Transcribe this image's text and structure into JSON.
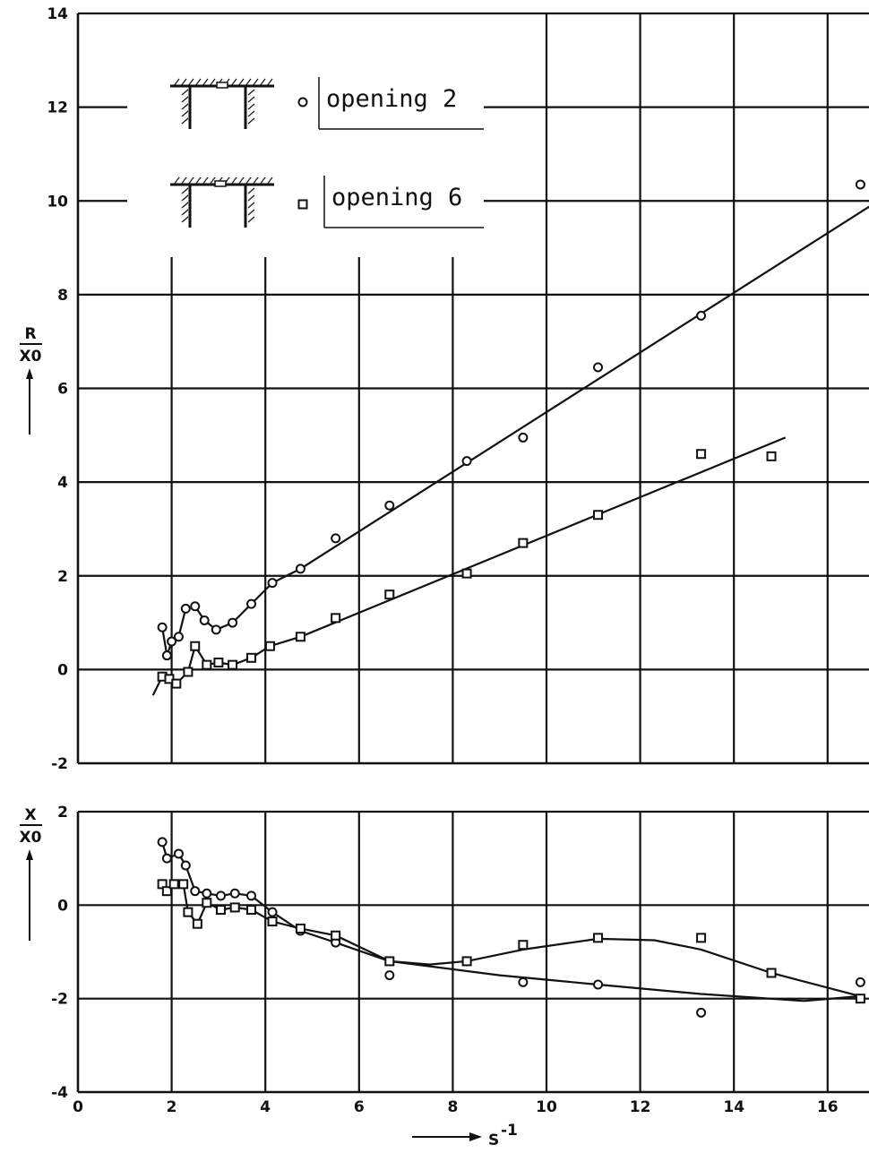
{
  "chart_data": [
    {
      "type": "scatter",
      "panel": "top",
      "ylabel": {
        "num": "R",
        "den": "X0"
      },
      "xlim": [
        0,
        17
      ],
      "ylim": [
        -2,
        14
      ],
      "xticks": [
        0,
        2,
        4,
        6,
        8,
        10,
        12,
        14,
        16
      ],
      "yticks": [
        -2,
        0,
        2,
        4,
        6,
        8,
        10,
        12,
        14
      ],
      "grid": true,
      "legend": {
        "placement": "top-left",
        "entries": [
          {
            "marker": "circle",
            "label": "opening 2"
          },
          {
            "marker": "square",
            "label": "opening 6"
          }
        ]
      },
      "series": [
        {
          "marker": "circle",
          "points": [
            [
              1.8,
              0.9
            ],
            [
              1.9,
              0.3
            ],
            [
              2.0,
              0.6
            ],
            [
              2.15,
              0.7
            ],
            [
              2.3,
              1.3
            ],
            [
              2.5,
              1.35
            ],
            [
              2.7,
              1.05
            ],
            [
              2.95,
              0.85
            ],
            [
              3.3,
              1.0
            ],
            [
              3.7,
              1.4
            ],
            [
              4.15,
              1.85
            ],
            [
              4.75,
              2.15
            ],
            [
              5.5,
              2.8
            ],
            [
              6.65,
              3.5
            ],
            [
              8.3,
              4.45
            ],
            [
              9.5,
              4.95
            ],
            [
              11.1,
              6.45
            ],
            [
              13.3,
              7.55
            ],
            [
              16.7,
              10.35
            ]
          ],
          "curve": [
            [
              1.8,
              0.9
            ],
            [
              1.9,
              0.3
            ],
            [
              2.0,
              0.6
            ],
            [
              2.15,
              0.7
            ],
            [
              2.3,
              1.3
            ],
            [
              2.5,
              1.35
            ],
            [
              2.7,
              1.05
            ],
            [
              2.95,
              0.85
            ],
            [
              3.3,
              1.0
            ],
            [
              3.7,
              1.4
            ],
            [
              4.15,
              1.85
            ],
            [
              4.75,
              2.15
            ],
            [
              17.0,
              9.95
            ]
          ]
        },
        {
          "marker": "square",
          "points": [
            [
              1.8,
              -0.15
            ],
            [
              1.95,
              -0.2
            ],
            [
              2.1,
              -0.3
            ],
            [
              2.35,
              -0.05
            ],
            [
              2.5,
              0.5
            ],
            [
              2.75,
              0.1
            ],
            [
              3.0,
              0.15
            ],
            [
              3.3,
              0.1
            ],
            [
              3.7,
              0.25
            ],
            [
              4.1,
              0.5
            ],
            [
              4.75,
              0.7
            ],
            [
              5.5,
              1.1
            ],
            [
              6.65,
              1.6
            ],
            [
              8.3,
              2.05
            ],
            [
              9.5,
              2.7
            ],
            [
              11.1,
              3.3
            ],
            [
              13.3,
              4.6
            ],
            [
              14.8,
              4.55
            ]
          ],
          "curve": [
            [
              1.6,
              -0.55
            ],
            [
              1.8,
              -0.15
            ],
            [
              1.95,
              -0.2
            ],
            [
              2.1,
              -0.3
            ],
            [
              2.35,
              -0.05
            ],
            [
              2.5,
              0.5
            ],
            [
              2.75,
              0.1
            ],
            [
              3.0,
              0.15
            ],
            [
              3.3,
              0.1
            ],
            [
              3.7,
              0.25
            ],
            [
              4.1,
              0.5
            ],
            [
              4.75,
              0.7
            ],
            [
              15.1,
              4.95
            ]
          ]
        }
      ]
    },
    {
      "type": "scatter",
      "panel": "bottom",
      "ylabel": {
        "num": "X",
        "den": "X0"
      },
      "xlabel": "S",
      "xlabel_exp": "-1",
      "xlim": [
        0,
        17
      ],
      "ylim": [
        -4,
        2
      ],
      "xticks": [
        0,
        2,
        4,
        6,
        8,
        10,
        12,
        14,
        16
      ],
      "yticks": [
        -4,
        -2,
        0,
        2
      ],
      "grid": true,
      "series": [
        {
          "marker": "circle",
          "points": [
            [
              1.8,
              1.35
            ],
            [
              1.9,
              1.0
            ],
            [
              2.15,
              1.1
            ],
            [
              2.3,
              0.85
            ],
            [
              2.5,
              0.3
            ],
            [
              2.75,
              0.25
            ],
            [
              3.05,
              0.2
            ],
            [
              3.35,
              0.25
            ],
            [
              3.7,
              0.2
            ],
            [
              4.15,
              -0.15
            ],
            [
              4.75,
              -0.55
            ],
            [
              5.5,
              -0.8
            ],
            [
              6.65,
              -1.5
            ],
            [
              8.3,
              -1.2
            ],
            [
              9.5,
              -1.65
            ],
            [
              11.1,
              -1.7
            ],
            [
              13.3,
              -2.3
            ],
            [
              16.7,
              -1.65
            ]
          ],
          "curve": [
            [
              1.8,
              1.35
            ],
            [
              1.9,
              1.0
            ],
            [
              2.15,
              1.1
            ],
            [
              2.3,
              0.85
            ],
            [
              2.5,
              0.3
            ],
            [
              2.75,
              0.25
            ],
            [
              3.05,
              0.2
            ],
            [
              3.35,
              0.25
            ],
            [
              3.7,
              0.2
            ],
            [
              4.15,
              -0.15
            ],
            [
              4.75,
              -0.55
            ],
            [
              5.5,
              -0.8
            ],
            [
              6.65,
              -1.2
            ],
            [
              9.0,
              -1.5
            ],
            [
              11.1,
              -1.7
            ],
            [
              13.3,
              -1.9
            ],
            [
              15.5,
              -2.05
            ],
            [
              16.65,
              -1.95
            ]
          ]
        },
        {
          "marker": "square",
          "points": [
            [
              1.8,
              0.45
            ],
            [
              1.9,
              0.3
            ],
            [
              2.05,
              0.45
            ],
            [
              2.25,
              0.45
            ],
            [
              2.35,
              -0.15
            ],
            [
              2.55,
              -0.4
            ],
            [
              2.75,
              0.05
            ],
            [
              3.05,
              -0.1
            ],
            [
              3.35,
              -0.05
            ],
            [
              3.7,
              -0.1
            ],
            [
              4.15,
              -0.35
            ],
            [
              4.75,
              -0.5
            ],
            [
              5.5,
              -0.65
            ],
            [
              6.65,
              -1.2
            ],
            [
              8.3,
              -1.2
            ],
            [
              9.5,
              -0.85
            ],
            [
              11.1,
              -0.7
            ],
            [
              13.3,
              -0.7
            ],
            [
              14.8,
              -1.45
            ],
            [
              16.7,
              -2.0
            ]
          ],
          "curve": [
            [
              1.8,
              0.45
            ],
            [
              1.9,
              0.3
            ],
            [
              2.05,
              0.45
            ],
            [
              2.25,
              0.45
            ],
            [
              2.35,
              -0.15
            ],
            [
              2.55,
              -0.4
            ],
            [
              2.75,
              0.05
            ],
            [
              3.05,
              -0.1
            ],
            [
              3.35,
              -0.05
            ],
            [
              3.7,
              -0.1
            ],
            [
              4.15,
              -0.35
            ],
            [
              4.75,
              -0.5
            ],
            [
              5.5,
              -0.65
            ],
            [
              6.65,
              -1.2
            ],
            [
              7.5,
              -1.27
            ],
            [
              8.3,
              -1.2
            ],
            [
              9.5,
              -0.95
            ],
            [
              11.1,
              -0.72
            ],
            [
              12.3,
              -0.75
            ],
            [
              13.3,
              -0.95
            ],
            [
              14.8,
              -1.45
            ],
            [
              16.7,
              -1.95
            ]
          ]
        }
      ]
    }
  ]
}
